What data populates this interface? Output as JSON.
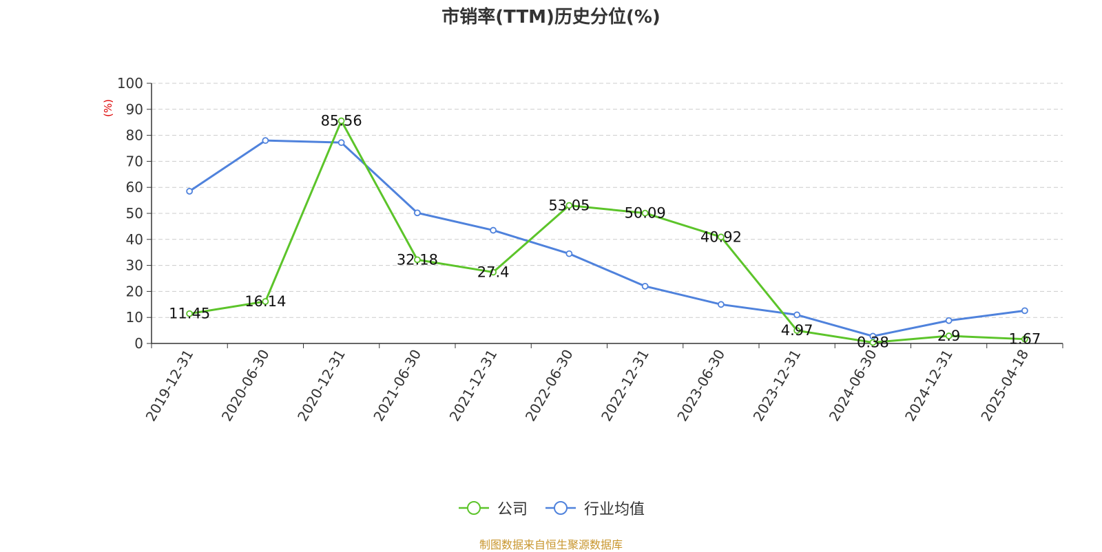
{
  "chart_data": {
    "type": "line",
    "title": "市销率(TTM)历史分位(%)",
    "ylabel": "(%)",
    "xlabel": "",
    "ylim": [
      0,
      100
    ],
    "yticks": [
      0,
      10,
      20,
      30,
      40,
      50,
      60,
      70,
      80,
      90,
      100
    ],
    "grid": true,
    "legend_position": "bottom",
    "categories": [
      "2019-12-31",
      "2020-06-30",
      "2020-12-31",
      "2021-06-30",
      "2021-12-31",
      "2022-06-30",
      "2022-12-31",
      "2023-06-30",
      "2023-12-31",
      "2024-06-30",
      "2024-12-31",
      "2025-04-18"
    ],
    "series": [
      {
        "name": "公司",
        "color": "#5cc42a",
        "values": [
          11.45,
          16.14,
          85.56,
          32.18,
          27.4,
          53.05,
          50.09,
          40.92,
          4.97,
          0.38,
          2.9,
          1.67
        ],
        "labels": [
          "11.45",
          "16.14",
          "85.56",
          "32.18",
          "27.4",
          "53.05",
          "50.09",
          "40.92",
          "4.97",
          "0.38",
          "2.9",
          "1.67"
        ]
      },
      {
        "name": "行业均值",
        "color": "#4f82dc",
        "values": [
          58.5,
          78.0,
          77.2,
          50.2,
          43.5,
          34.5,
          22.0,
          15.0,
          11.0,
          2.8,
          8.8,
          12.6
        ]
      }
    ]
  },
  "source_note": "制图数据来自恒生聚源数据库"
}
